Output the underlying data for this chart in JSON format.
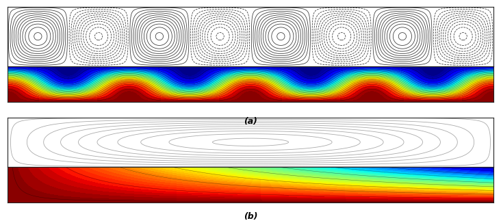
{
  "fig_width": 7.32,
  "fig_height": 3.26,
  "dpi": 100,
  "background_color": "#ffffff",
  "label_a": "(a)",
  "label_b": "(b)",
  "label_fontsize": 9,
  "label_fontweight": "bold",
  "num_vortices": 8,
  "streamline_color_a": "#333333",
  "streamline_color_b": "#aaaaaa",
  "streamline_linewidth_a": 0.55,
  "streamline_linewidth_b": 0.6
}
